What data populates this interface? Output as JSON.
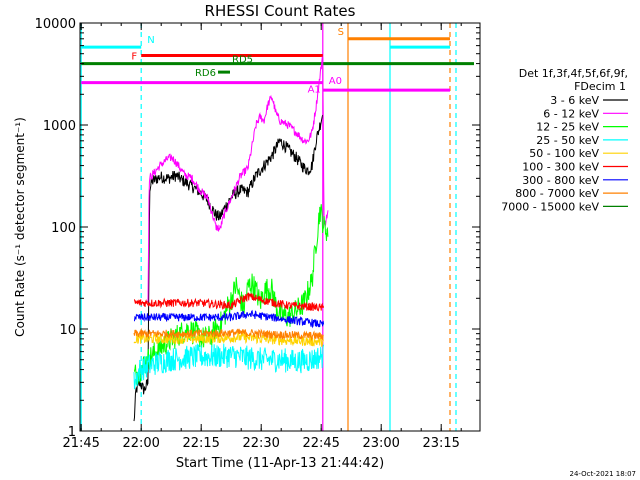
{
  "chart_data": {
    "type": "line",
    "title": "RHESSI Count Rates",
    "xlabel": "Start Time (11-Apr-13 21:44:42)",
    "ylabel": "Count Rate (s⁻¹ detector segment⁻¹)",
    "y_scale": "log",
    "ylim": [
      1,
      10000
    ],
    "xlim_minutes": [
      0,
      100
    ],
    "x_ticks": [
      {
        "label": "21:45",
        "t": 0.3
      },
      {
        "label": "22:00",
        "t": 15.3
      },
      {
        "label": "22:15",
        "t": 30.3
      },
      {
        "label": "22:30",
        "t": 45.3
      },
      {
        "label": "22:45",
        "t": 60.3
      },
      {
        "label": "23:00",
        "t": 75.3
      },
      {
        "label": "23:15",
        "t": 90.3
      }
    ],
    "y_ticks": [
      {
        "label": "1",
        "v": 1
      },
      {
        "label": "10",
        "v": 10
      },
      {
        "label": "100",
        "v": 100
      },
      {
        "label": "1000",
        "v": 1000
      },
      {
        "label": "10000",
        "v": 10000
      }
    ],
    "legend": {
      "placement": "right",
      "header": [
        "Det 1f,3f,4f,5f,6f,9f,",
        "FDecim 1"
      ],
      "entries": [
        {
          "label": "3 - 6 keV",
          "color": "#000000"
        },
        {
          "label": "6 - 12 keV",
          "color": "#ff00ff"
        },
        {
          "label": "12 - 25 keV",
          "color": "#00ff00"
        },
        {
          "label": "25 - 50 keV",
          "color": "#00ffff"
        },
        {
          "label": "50 - 100 keV",
          "color": "#ffd200"
        },
        {
          "label": "100 - 300 keV",
          "color": "#ff0000"
        },
        {
          "label": "300 - 800 keV",
          "color": "#0000ff"
        },
        {
          "label": "800 - 7000 keV",
          "color": "#ff8000"
        },
        {
          "label": "7000 - 15000 keV",
          "color": "#008000"
        }
      ]
    },
    "series": [
      {
        "name": "3 - 6 keV",
        "color": "#000000",
        "noise": 0.06,
        "points": [
          [
            13.5,
            1.2
          ],
          [
            14,
            2.5
          ],
          [
            15,
            3
          ],
          [
            16,
            2.5
          ],
          [
            17,
            3
          ],
          [
            17.4,
            230
          ],
          [
            18,
            280
          ],
          [
            20,
            310
          ],
          [
            22,
            300
          ],
          [
            24,
            320
          ],
          [
            26,
            280
          ],
          [
            28,
            250
          ],
          [
            30,
            220
          ],
          [
            32,
            180
          ],
          [
            34,
            130
          ],
          [
            35,
            125
          ],
          [
            36,
            150
          ],
          [
            38,
            200
          ],
          [
            40,
            230
          ],
          [
            42,
            220
          ],
          [
            44,
            320
          ],
          [
            46,
            400
          ],
          [
            48,
            500
          ],
          [
            50,
            700
          ],
          [
            52,
            580
          ],
          [
            54,
            480
          ],
          [
            56,
            380
          ],
          [
            57,
            360
          ],
          [
            58,
            400
          ],
          [
            59,
            700
          ],
          [
            60,
            1000
          ],
          [
            60.7,
            1300
          ]
        ]
      },
      {
        "name": "6 - 12 keV",
        "color": "#ff00ff",
        "noise": 0.04,
        "points": [
          [
            17,
            20
          ],
          [
            17.3,
            300
          ],
          [
            18,
            320
          ],
          [
            20,
            400
          ],
          [
            22,
            470
          ],
          [
            23,
            480
          ],
          [
            24,
            430
          ],
          [
            25,
            380
          ],
          [
            26,
            330
          ],
          [
            28,
            300
          ],
          [
            30,
            230
          ],
          [
            32,
            190
          ],
          [
            34,
            100
          ],
          [
            35,
            95
          ],
          [
            36,
            130
          ],
          [
            38,
            200
          ],
          [
            40,
            310
          ],
          [
            42,
            380
          ],
          [
            44,
            1000
          ],
          [
            45,
            1200
          ],
          [
            46,
            1100
          ],
          [
            47,
            1600
          ],
          [
            48,
            1900
          ],
          [
            49,
            1300
          ],
          [
            50,
            1100
          ],
          [
            52,
            1000
          ],
          [
            54,
            850
          ],
          [
            56,
            700
          ],
          [
            57,
            700
          ],
          [
            58,
            850
          ],
          [
            59,
            1500
          ],
          [
            60,
            3000
          ],
          [
            60.7,
            5000
          ],
          [
            61,
            100
          ],
          [
            62,
            140
          ]
        ]
      },
      {
        "name": "12 - 25 keV",
        "color": "#00ff00",
        "noise": 0.12,
        "points": [
          [
            13.5,
            3.5
          ],
          [
            15,
            4
          ],
          [
            17,
            5
          ],
          [
            19,
            6
          ],
          [
            21,
            7
          ],
          [
            23,
            8
          ],
          [
            25,
            9
          ],
          [
            27,
            10
          ],
          [
            29,
            9
          ],
          [
            31,
            8
          ],
          [
            33,
            8.5
          ],
          [
            34,
            10
          ],
          [
            35,
            11
          ],
          [
            36,
            13
          ],
          [
            37,
            17
          ],
          [
            38,
            20
          ],
          [
            39,
            27
          ],
          [
            40,
            20
          ],
          [
            41,
            16
          ],
          [
            42,
            26
          ],
          [
            43,
            28
          ],
          [
            44,
            24
          ],
          [
            45,
            18
          ],
          [
            46,
            23
          ],
          [
            47,
            25
          ],
          [
            48,
            24
          ],
          [
            49,
            17
          ],
          [
            50,
            14
          ],
          [
            52,
            13
          ],
          [
            54,
            15
          ],
          [
            56,
            18
          ],
          [
            58,
            30
          ],
          [
            59,
            70
          ],
          [
            60,
            150
          ],
          [
            61,
            100
          ],
          [
            62,
            90
          ]
        ]
      },
      {
        "name": "25 - 50 keV",
        "color": "#00ffff",
        "noise": 0.12,
        "points": [
          [
            13.5,
            3
          ],
          [
            15,
            4
          ],
          [
            18,
            4.5
          ],
          [
            22,
            5
          ],
          [
            26,
            5.2
          ],
          [
            30,
            5.4
          ],
          [
            34,
            5.4
          ],
          [
            38,
            5.5
          ],
          [
            42,
            5.2
          ],
          [
            46,
            5
          ],
          [
            50,
            5
          ],
          [
            54,
            4.8
          ],
          [
            58,
            5
          ],
          [
            61,
            5.5
          ]
        ]
      },
      {
        "name": "50 - 100 keV",
        "color": "#ffd200",
        "noise": 0.05,
        "points": [
          [
            13.5,
            8
          ],
          [
            20,
            8
          ],
          [
            30,
            8
          ],
          [
            40,
            8.3
          ],
          [
            50,
            7.8
          ],
          [
            61,
            7.5
          ]
        ]
      },
      {
        "name": "100 - 300 keV",
        "color": "#ff0000",
        "noise": 0.04,
        "points": [
          [
            13.5,
            18
          ],
          [
            20,
            18
          ],
          [
            30,
            18
          ],
          [
            38,
            17
          ],
          [
            42,
            21
          ],
          [
            46,
            19
          ],
          [
            52,
            17
          ],
          [
            58,
            16.5
          ],
          [
            61,
            16
          ]
        ]
      },
      {
        "name": "300 - 800 keV",
        "color": "#0000ff",
        "noise": 0.04,
        "points": [
          [
            13.5,
            13
          ],
          [
            20,
            13
          ],
          [
            30,
            13
          ],
          [
            38,
            13
          ],
          [
            42,
            14
          ],
          [
            48,
            13
          ],
          [
            54,
            12
          ],
          [
            58,
            11.5
          ],
          [
            61,
            11
          ]
        ]
      },
      {
        "name": "800 - 7000 keV",
        "color": "#ff8000",
        "noise": 0.04,
        "points": [
          [
            13.5,
            9
          ],
          [
            20,
            9
          ],
          [
            30,
            9
          ],
          [
            40,
            9.2
          ],
          [
            50,
            8.8
          ],
          [
            61,
            8.5
          ]
        ]
      }
    ],
    "annotations": [
      {
        "label": "N",
        "color": "#00ffff",
        "segments": [
          [
            0.3,
            15.3,
            5800
          ],
          [
            77.5,
            92.5,
            5800
          ]
        ]
      },
      {
        "label": "F",
        "color": "#ff0000",
        "segments": [
          [
            15.3,
            60.7,
            4800
          ]
        ]
      },
      {
        "label": "RD5",
        "color": "#008000",
        "segments": [
          [
            0.3,
            98.5,
            4000
          ]
        ]
      },
      {
        "label": "RD6",
        "color": "#008000",
        "segments": [
          [
            34.5,
            37.5,
            3300
          ]
        ]
      },
      {
        "label": "A1",
        "color": "#ff00ff",
        "segments": [
          [
            0.3,
            60.7,
            2600
          ]
        ]
      },
      {
        "label": "A0",
        "color": "#ff00ff",
        "segments": [
          [
            60.7,
            92.5,
            2200
          ]
        ]
      },
      {
        "label": "S",
        "color": "#ff8000",
        "segments": [
          [
            67,
            92.5,
            7000
          ]
        ]
      }
    ],
    "vlines": [
      {
        "t": 0.3,
        "color": "#00ffff",
        "dashed": false
      },
      {
        "t": 15.3,
        "color": "#00ffff",
        "dashed": true
      },
      {
        "t": 60.7,
        "color": "#ff00ff",
        "dashed": false
      },
      {
        "t": 67,
        "color": "#ff8000",
        "dashed": false
      },
      {
        "t": 77.5,
        "color": "#00ffff",
        "dashed": false
      },
      {
        "t": 92.5,
        "color": "#ff8000",
        "dashed": true
      },
      {
        "t": 94,
        "color": "#00ffff",
        "dashed": true
      }
    ],
    "grid": false
  },
  "footer": {
    "timestamp": "24-Oct-2021 18:07"
  }
}
